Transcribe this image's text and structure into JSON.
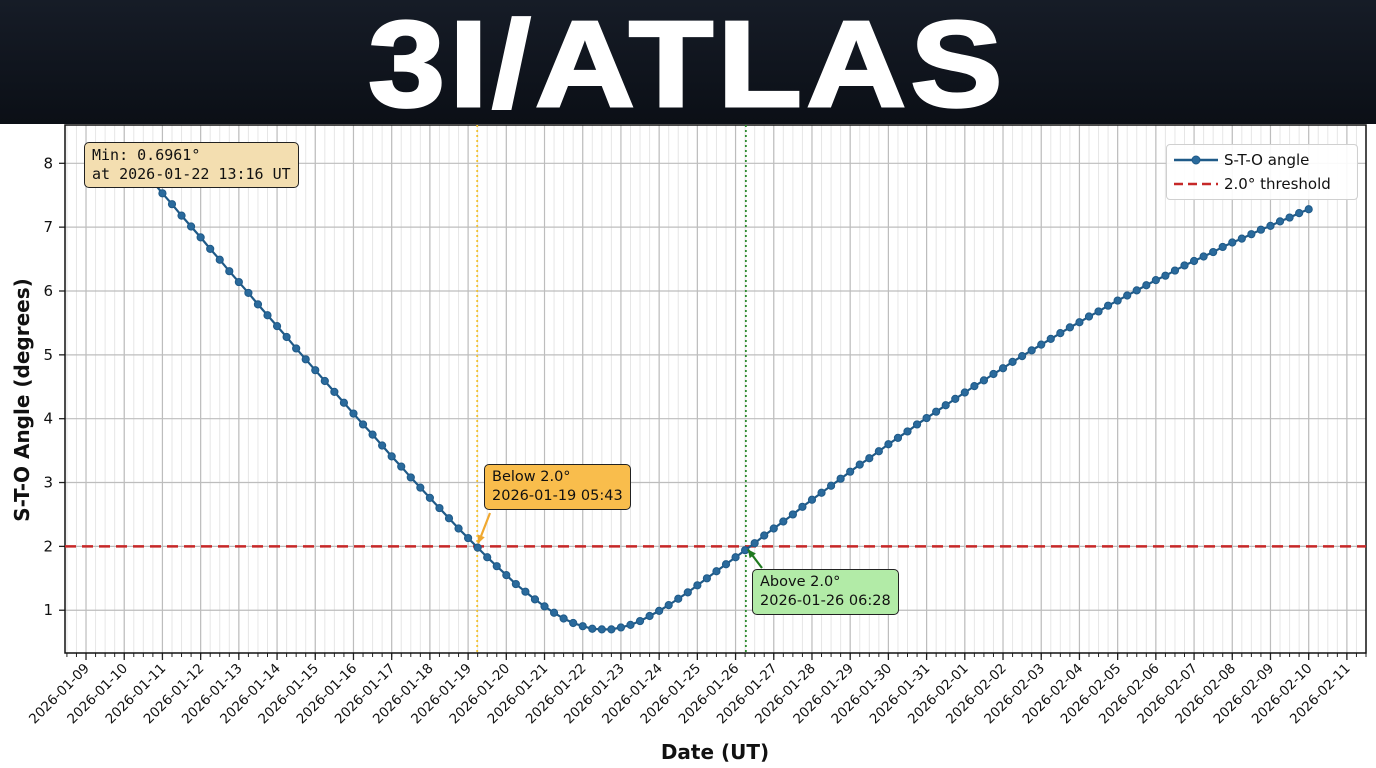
{
  "banner": {
    "title": "3I/ATLAS"
  },
  "chart_data": {
    "type": "line",
    "xlabel": "Date (UT)",
    "ylabel": "S-T-O Angle (degrees)",
    "xlim": [
      "2026-01-08 10:48",
      "2026-02-11 12:00"
    ],
    "ylim": [
      0.33,
      8.6
    ],
    "grid": true,
    "minor_grid_hours": 6,
    "x_ticks": [
      "2026-01-09",
      "2026-01-10",
      "2026-01-11",
      "2026-01-12",
      "2026-01-13",
      "2026-01-14",
      "2026-01-15",
      "2026-01-16",
      "2026-01-17",
      "2026-01-18",
      "2026-01-19",
      "2026-01-20",
      "2026-01-21",
      "2026-01-22",
      "2026-01-23",
      "2026-01-24",
      "2026-01-25",
      "2026-01-26",
      "2026-01-27",
      "2026-01-28",
      "2026-01-29",
      "2026-01-30",
      "2026-01-31",
      "2026-02-01",
      "2026-02-02",
      "2026-02-03",
      "2026-02-04",
      "2026-02-05",
      "2026-02-06",
      "2026-02-07",
      "2026-02-08",
      "2026-02-09",
      "2026-02-10",
      "2026-02-11"
    ],
    "y_ticks": [
      1,
      2,
      3,
      4,
      5,
      6,
      7,
      8
    ],
    "legend_position": "top-right",
    "series": [
      {
        "name": "S-T-O angle",
        "color": "#1f5a88",
        "marker": "circle",
        "x_start": "2026-01-10 00:00",
        "x_step_hours": 6,
        "values": [
          8.23,
          8.06,
          7.88,
          7.71,
          7.53,
          7.36,
          7.18,
          7.01,
          6.84,
          6.66,
          6.49,
          6.31,
          6.14,
          5.97,
          5.79,
          5.62,
          5.45,
          5.28,
          5.1,
          4.93,
          4.76,
          4.59,
          4.42,
          4.25,
          4.08,
          3.91,
          3.75,
          3.58,
          3.41,
          3.25,
          3.08,
          2.92,
          2.76,
          2.6,
          2.44,
          2.28,
          2.13,
          1.98,
          1.83,
          1.69,
          1.55,
          1.41,
          1.29,
          1.17,
          1.06,
          0.96,
          0.87,
          0.8,
          0.75,
          0.71,
          0.7,
          0.7,
          0.73,
          0.77,
          0.83,
          0.91,
          0.99,
          1.08,
          1.18,
          1.28,
          1.39,
          1.5,
          1.61,
          1.72,
          1.83,
          1.94,
          2.05,
          2.17,
          2.28,
          2.39,
          2.5,
          2.62,
          2.73,
          2.84,
          2.95,
          3.06,
          3.17,
          3.28,
          3.38,
          3.49,
          3.6,
          3.7,
          3.8,
          3.91,
          4.01,
          4.11,
          4.21,
          4.31,
          4.41,
          4.51,
          4.6,
          4.7,
          4.79,
          4.89,
          4.98,
          5.07,
          5.16,
          5.25,
          5.34,
          5.43,
          5.51,
          5.6,
          5.68,
          5.77,
          5.85,
          5.93,
          6.01,
          6.09,
          6.17,
          6.24,
          6.32,
          6.4,
          6.47,
          6.54,
          6.61,
          6.69,
          6.76,
          6.82,
          6.89,
          6.96,
          7.02,
          7.09,
          7.15,
          7.22,
          7.28
        ]
      },
      {
        "name": "2.0° threshold",
        "color": "#c62828",
        "style": "dashed",
        "y": 2.0
      }
    ],
    "vlines": [
      {
        "x": "2026-01-19 05:43",
        "color": "#f2c230",
        "style": "dotted"
      },
      {
        "x": "2026-01-26 06:28",
        "color": "#2e8b2e",
        "style": "dotted"
      }
    ],
    "annotations": {
      "min": {
        "line1": "Min: 0.6961°",
        "line2": "at 2026-01-22 13:16 UT",
        "color": "#f3deb0"
      },
      "below": {
        "line1": "Below 2.0°",
        "line2": "2026-01-19 05:43",
        "target_x": "2026-01-19 05:43",
        "target_y": 2.0,
        "color": "#f9bd4c",
        "arrow_color": "#f0a830"
      },
      "above": {
        "line1": "Above 2.0°",
        "line2": "2026-01-26 06:28",
        "target_x": "2026-01-26 06:28",
        "target_y": 2.0,
        "color": "#b2eba7",
        "arrow_color": "#1f7a1f"
      }
    }
  }
}
